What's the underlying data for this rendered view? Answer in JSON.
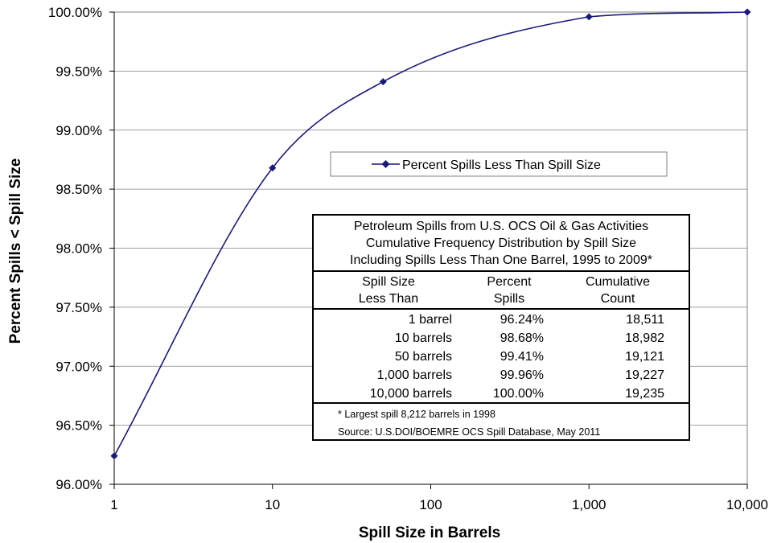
{
  "chart_data": {
    "type": "line",
    "xscale": "log",
    "x": [
      1,
      10,
      50,
      1000,
      10000
    ],
    "series": [
      {
        "name": "Percent Spills Less Than Spill Size",
        "values": [
          96.24,
          98.68,
          99.41,
          99.96,
          100.0
        ]
      }
    ],
    "xlabel": "Spill Size in Barrels",
    "ylabel": "Percent Spills < Spill Size",
    "xlim": [
      1,
      10000
    ],
    "ylim": [
      96.0,
      100.0
    ],
    "xticks": [
      1,
      10,
      100,
      1000,
      10000
    ],
    "xtick_labels": [
      "1",
      "10",
      "100",
      "1,000",
      "10,000"
    ],
    "yticks": [
      96.0,
      96.5,
      97.0,
      97.5,
      98.0,
      98.5,
      99.0,
      99.5,
      100.0
    ],
    "ytick_labels": [
      "96.00%",
      "96.50%",
      "97.00%",
      "97.50%",
      "98.00%",
      "98.50%",
      "99.00%",
      "99.50%",
      "100.00%"
    ],
    "grid": "horizontal",
    "legend_position": "center",
    "series_color": "#1a1a7a",
    "gridline_color": "#808080"
  },
  "table": {
    "title_lines": [
      "Petroleum Spills from U.S. OCS Oil & Gas Activities",
      "Cumulative Frequency Distribution by Spill Size",
      "Including  Spills Less Than One Barrel, 1995 to 2009*"
    ],
    "headers": [
      [
        "Spill Size",
        "Less Than"
      ],
      [
        "Percent",
        "Spills"
      ],
      [
        "Cumulative",
        "Count"
      ]
    ],
    "rows": [
      [
        "1 barrel",
        "96.24%",
        "18,511"
      ],
      [
        "10 barrels",
        "98.68%",
        "18,982"
      ],
      [
        "50 barrels",
        "99.41%",
        "19,121"
      ],
      [
        "1,000 barrels",
        "99.96%",
        "19,227"
      ],
      [
        "10,000 barrels",
        "100.00%",
        "19,235"
      ]
    ],
    "footnote": "* Largest spill 8,212 barrels in 1998",
    "source": "Source: U.S.DOI/BOEMRE OCS Spill Database, May 2011"
  }
}
